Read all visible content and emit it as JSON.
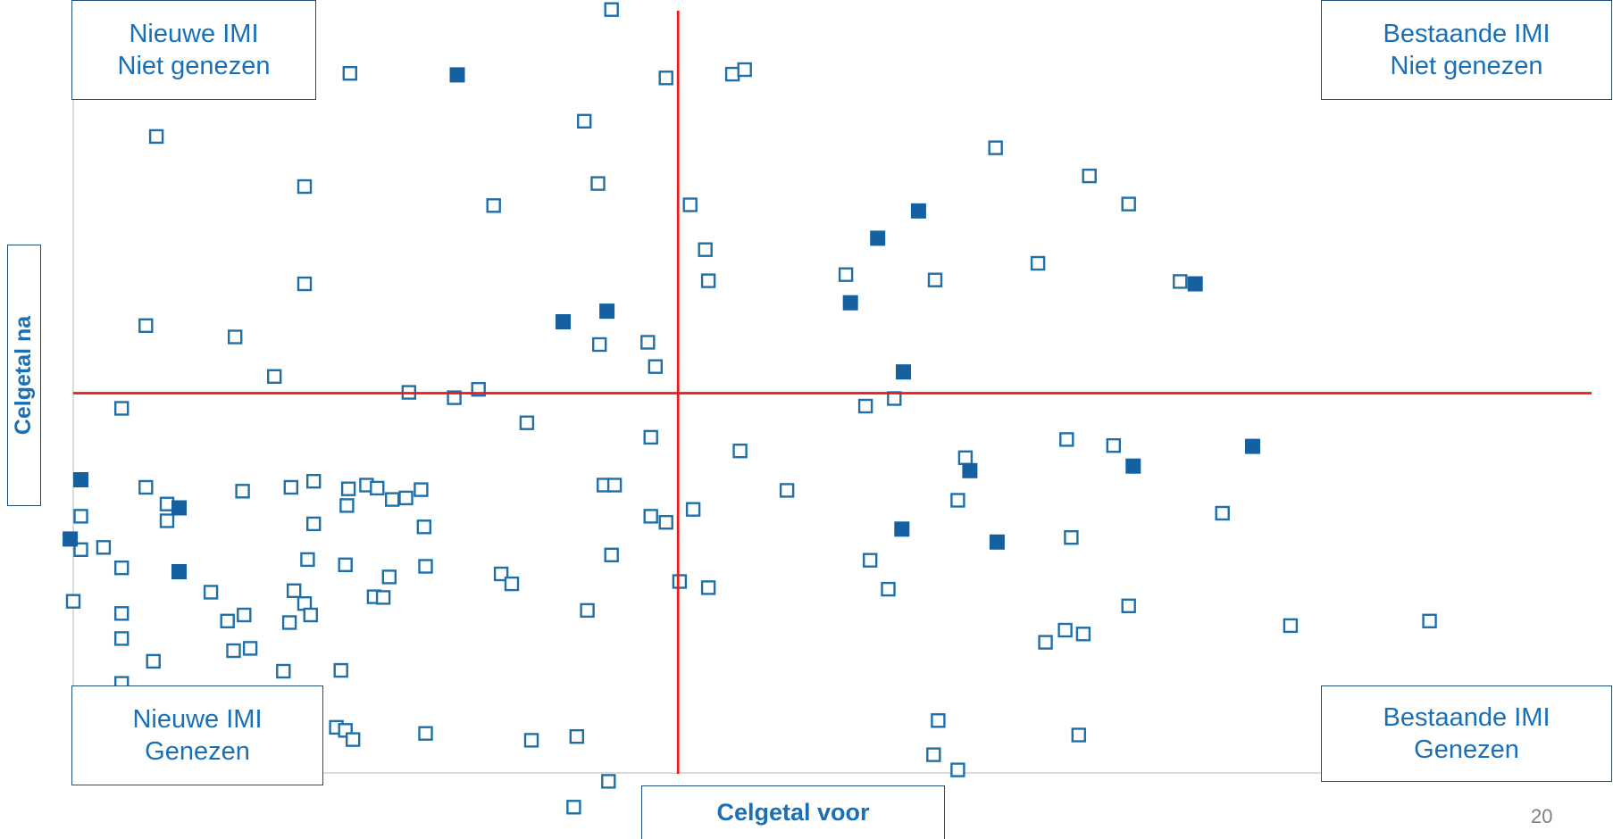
{
  "chart_data": {
    "type": "scatter",
    "xlabel": "Celgetal voor",
    "ylabel": "Celgetal na",
    "xlim": [
      0,
      100
    ],
    "ylim": [
      0,
      100
    ],
    "quadrant_lines": {
      "x": 40,
      "y": 50
    },
    "quadrant_labels": {
      "top_left": [
        "Nieuwe IMI",
        "Niet genezen"
      ],
      "top_right": [
        "Bestaande IMI",
        "Niet genezen"
      ],
      "bottom_left": [
        "Nieuwe IMI",
        "Genezen"
      ],
      "bottom_right": [
        "Bestaande IMI",
        "Genezen"
      ]
    },
    "grid": false,
    "series": [
      {
        "marker": "open-square",
        "color": "#1f6fa8",
        "points": [
          [
            0.5,
            90.7
          ],
          [
            5.5,
            83.8
          ],
          [
            14.5,
            95.7
          ],
          [
            18.3,
            92.1
          ],
          [
            35.6,
            100.5
          ],
          [
            39.2,
            91.5
          ],
          [
            43.6,
            92.0
          ],
          [
            44.4,
            92.6
          ],
          [
            33.8,
            85.8
          ],
          [
            15.3,
            77.2
          ],
          [
            27.8,
            74.7
          ],
          [
            34.7,
            77.6
          ],
          [
            40.8,
            74.8
          ],
          [
            41.8,
            68.9
          ],
          [
            15.3,
            64.4
          ],
          [
            4.8,
            58.9
          ],
          [
            10.7,
            57.4
          ],
          [
            13.3,
            52.2
          ],
          [
            22.2,
            50.1
          ],
          [
            25.2,
            49.4
          ],
          [
            26.8,
            50.5
          ],
          [
            34.8,
            56.4
          ],
          [
            38.0,
            56.7
          ],
          [
            38.5,
            53.5
          ],
          [
            42.0,
            64.8
          ],
          [
            51.1,
            65.6
          ],
          [
            57.0,
            64.9
          ],
          [
            63.8,
            67.1
          ],
          [
            61.0,
            82.3
          ],
          [
            67.2,
            78.6
          ],
          [
            69.8,
            74.9
          ],
          [
            73.2,
            64.7
          ],
          [
            3.2,
            48.0
          ],
          [
            0.5,
            29.4
          ],
          [
            0.5,
            33.8
          ],
          [
            4.8,
            37.6
          ],
          [
            6.2,
            35.4
          ],
          [
            6.2,
            33.2
          ],
          [
            11.2,
            37.1
          ],
          [
            14.4,
            37.6
          ],
          [
            15.9,
            38.4
          ],
          [
            15.9,
            32.8
          ],
          [
            18.2,
            37.4
          ],
          [
            18.1,
            35.2
          ],
          [
            19.4,
            37.9
          ],
          [
            20.1,
            37.5
          ],
          [
            21.1,
            36.0
          ],
          [
            22.0,
            36.2
          ],
          [
            23.0,
            37.3
          ],
          [
            23.2,
            32.4
          ],
          [
            30.0,
            46.1
          ],
          [
            35.1,
            37.9
          ],
          [
            35.8,
            37.9
          ],
          [
            38.2,
            44.2
          ],
          [
            38.2,
            33.8
          ],
          [
            39.2,
            33.0
          ],
          [
            41.0,
            34.7
          ],
          [
            44.1,
            42.4
          ],
          [
            47.2,
            37.2
          ],
          [
            52.4,
            48.3
          ],
          [
            54.3,
            49.3
          ],
          [
            59.0,
            41.5
          ],
          [
            65.7,
            43.9
          ],
          [
            68.8,
            43.1
          ],
          [
            76.0,
            34.2
          ],
          [
            58.5,
            35.9
          ],
          [
            66.0,
            31.0
          ],
          [
            52.7,
            28.0
          ],
          [
            2.0,
            29.7
          ],
          [
            0.0,
            22.6
          ],
          [
            3.2,
            21.0
          ],
          [
            3.2,
            27.0
          ],
          [
            9.1,
            23.8
          ],
          [
            10.2,
            20.0
          ],
          [
            11.3,
            20.8
          ],
          [
            14.6,
            24.0
          ],
          [
            15.3,
            22.3
          ],
          [
            18.0,
            27.4
          ],
          [
            19.9,
            23.2
          ],
          [
            20.5,
            23.1
          ],
          [
            20.9,
            25.8
          ],
          [
            15.5,
            28.1
          ],
          [
            23.3,
            27.2
          ],
          [
            28.3,
            26.2
          ],
          [
            29.0,
            24.9
          ],
          [
            34.0,
            21.4
          ],
          [
            35.6,
            28.7
          ],
          [
            3.2,
            17.7
          ],
          [
            5.3,
            14.7
          ],
          [
            10.6,
            16.1
          ],
          [
            11.7,
            16.4
          ],
          [
            13.9,
            13.4
          ],
          [
            14.3,
            19.8
          ],
          [
            15.7,
            20.8
          ],
          [
            17.7,
            13.5
          ],
          [
            3.2,
            11.8
          ],
          [
            5.5,
            8.5
          ],
          [
            6.3,
            5.8
          ],
          [
            5.4,
            3.7
          ],
          [
            17.4,
            6.0
          ],
          [
            18.0,
            5.6
          ],
          [
            18.5,
            4.4
          ],
          [
            23.3,
            5.2
          ],
          [
            30.3,
            4.3
          ],
          [
            33.3,
            4.8
          ],
          [
            40.1,
            25.2
          ],
          [
            42.0,
            24.4
          ],
          [
            53.9,
            24.2
          ],
          [
            64.3,
            17.2
          ],
          [
            65.6,
            18.8
          ],
          [
            66.8,
            18.3
          ],
          [
            69.8,
            22.0
          ],
          [
            66.5,
            5.0
          ],
          [
            57.2,
            6.9
          ],
          [
            80.5,
            19.4
          ],
          [
            89.7,
            20.0
          ],
          [
            33.1,
            -4.5
          ],
          [
            39.7,
            -3.4
          ],
          [
            35.4,
            -1.1
          ],
          [
            56.9,
            2.4
          ],
          [
            58.5,
            0.4
          ]
        ]
      },
      {
        "marker": "filled-square",
        "color": "#1460a0",
        "points": [
          [
            25.4,
            91.9
          ],
          [
            53.2,
            70.4
          ],
          [
            74.2,
            64.4
          ],
          [
            78.0,
            43.0
          ],
          [
            32.4,
            59.4
          ],
          [
            35.3,
            60.8
          ],
          [
            51.4,
            61.9
          ],
          [
            55.9,
            74.0
          ],
          [
            54.8,
            32.1
          ],
          [
            61.1,
            30.4
          ],
          [
            54.9,
            52.8
          ],
          [
            70.1,
            40.4
          ],
          [
            0.5,
            38.6
          ],
          [
            7.0,
            34.9
          ],
          [
            7.0,
            26.5
          ],
          [
            -0.2,
            30.8
          ],
          [
            59.3,
            39.8
          ]
        ]
      }
    ]
  },
  "page_number": "20"
}
